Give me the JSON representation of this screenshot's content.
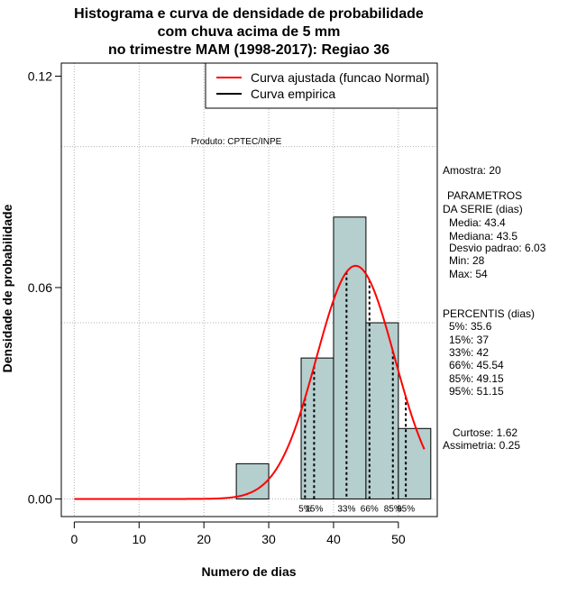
{
  "chart_data": {
    "type": "histogram",
    "title_lines": [
      "Histograma e curva de densidade de probabilidade",
      "com chuva acima de 5 mm",
      "no trimestre MAM (1998-2017): Regiao 36"
    ],
    "xlabel": "Numero de dias",
    "ylabel": "Densidade de probabilidade",
    "xlim": [
      -2,
      56
    ],
    "ylim": [
      -0.005,
      0.1237
    ],
    "x_ticks": [
      0,
      10,
      20,
      30,
      40,
      50
    ],
    "x_tick_labels": [
      "0",
      "10",
      "20",
      "30",
      "40",
      "50"
    ],
    "y_ticks": [
      0.0,
      0.06,
      0.12
    ],
    "y_tick_labels": [
      "0.00",
      "0.06",
      "0.12"
    ],
    "grid_x": [
      0,
      10,
      20,
      30,
      40,
      50
    ],
    "grid_y": [
      0,
      0.05,
      0.1
    ],
    "bar_color": "#b5cece",
    "bins": [
      {
        "start": 25,
        "end": 30,
        "density": 0.01
      },
      {
        "start": 30,
        "end": 35,
        "density": 0.0
      },
      {
        "start": 35,
        "end": 40,
        "density": 0.04
      },
      {
        "start": 40,
        "end": 45,
        "density": 0.08
      },
      {
        "start": 45,
        "end": 50,
        "density": 0.05
      },
      {
        "start": 50,
        "end": 55,
        "density": 0.02
      }
    ],
    "fitted_curve": {
      "name": "Curva ajustada (funcao Normal)",
      "color": "#ff0000",
      "mean": 43.4,
      "sd": 6.03,
      "x_start": 0,
      "x_end": 54
    },
    "empirical_curve": {
      "name": "Curva empirica",
      "color": "#000000"
    },
    "percentiles": [
      {
        "label": "5%",
        "value": 35.6
      },
      {
        "label": "15%",
        "value": 37
      },
      {
        "label": "33%",
        "value": 42
      },
      {
        "label": "66%",
        "value": 45.54
      },
      {
        "label": "85%",
        "value": 49.15
      },
      {
        "label": "95%",
        "value": 51.15
      }
    ],
    "legend_position": "top-right",
    "produto": "Produto: CPTEC/INPE"
  },
  "stats_panel": {
    "amostra": "Amostra: 20",
    "parametros_title_1": "PARAMETROS",
    "parametros_title_2": "DA SERIE (dias)",
    "media": "Media: 43.4",
    "mediana": "Mediana: 43.5",
    "desvio": "Desvio padrao: 6.03",
    "min": "Min: 28",
    "max": "Max: 54",
    "percentis_title": "PERCENTIS (dias)",
    "p5": "5%: 35.6",
    "p15": "15%: 37",
    "p33": "33%: 42",
    "p66": "66%: 45.54",
    "p85": "85%: 49.15",
    "p95": "95%: 51.15",
    "curtose": "Curtose: 1.62",
    "assimetria": "Assimetria: 0.25"
  }
}
